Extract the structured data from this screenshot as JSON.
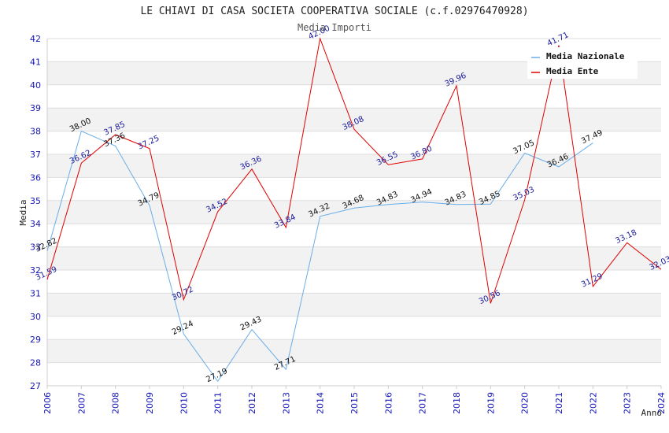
{
  "chart_data": {
    "type": "line",
    "title": "LE CHIAVI DI CASA SOCIETA COOPERATIVA SOCIALE (c.f.02976470928)",
    "subtitle": "Media Importi",
    "xlabel": "Anno",
    "ylabel": "Media",
    "ylim": [
      27,
      42
    ],
    "yticks": [
      27,
      28,
      29,
      30,
      31,
      32,
      33,
      34,
      35,
      36,
      37,
      38,
      39,
      40,
      41,
      42
    ],
    "x": [
      "2006",
      "2007",
      "2008",
      "2009",
      "2010",
      "2011",
      "2012",
      "2013",
      "2014",
      "2015",
      "2016",
      "2017",
      "2018",
      "2019",
      "2020",
      "2021",
      "2022",
      "2023",
      "2024"
    ],
    "grid": "horizontal, alternating bands",
    "legend_position": "top-right",
    "series": [
      {
        "name": "Media Nazionale",
        "color": "#6aaee8",
        "values": [
          32.82,
          38.0,
          37.36,
          34.79,
          29.24,
          27.19,
          29.43,
          27.71,
          34.32,
          34.68,
          34.83,
          34.94,
          34.83,
          34.85,
          37.05,
          36.46,
          37.49,
          null,
          null
        ],
        "labels": [
          "32.82",
          "38.00",
          "37.36",
          "34.79",
          "29.24",
          "27.19",
          "29.43",
          "27.71",
          "34.32",
          "34.68",
          "34.83",
          "34.94",
          "34.83",
          "34.85",
          "37.05",
          "36.46",
          "37.49",
          null,
          null
        ]
      },
      {
        "name": "Media Ente",
        "color": "#e00000",
        "values": [
          31.59,
          36.62,
          37.85,
          37.25,
          30.72,
          34.52,
          36.36,
          33.84,
          42.0,
          38.08,
          36.55,
          36.8,
          39.96,
          30.56,
          35.03,
          41.71,
          31.29,
          33.18,
          32.03
        ],
        "labels": [
          "31.59",
          "36.62",
          "37.85",
          "37.25",
          "30.72",
          "34.52",
          "36.36",
          "33.84",
          "42.00",
          "38.08",
          "36.55",
          "36.80",
          "39.96",
          "30.56",
          "35.03",
          "41.71",
          "31.29",
          "33.18",
          "32.03"
        ]
      }
    ]
  }
}
